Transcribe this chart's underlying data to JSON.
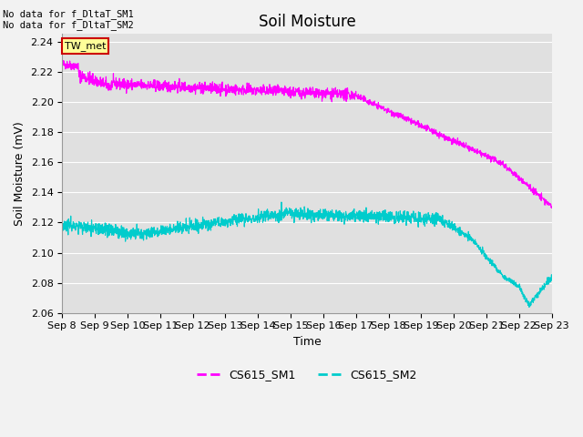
{
  "title": "Soil Moisture",
  "ylabel": "Soil Moisture (mV)",
  "xlabel": "Time",
  "ylim": [
    2.06,
    2.245
  ],
  "yticks": [
    2.06,
    2.08,
    2.1,
    2.12,
    2.14,
    2.16,
    2.18,
    2.2,
    2.22,
    2.24
  ],
  "xtick_labels": [
    "Sep 8",
    "Sep 9",
    "Sep 10",
    "Sep 11",
    "Sep 12",
    "Sep 13",
    "Sep 14",
    "Sep 15",
    "Sep 16",
    "Sep 17",
    "Sep 18",
    "Sep 19",
    "Sep 20",
    "Sep 21",
    "Sep 22",
    "Sep 23"
  ],
  "num_days": 15,
  "color_sm1": "#FF00FF",
  "color_sm2": "#00CCCC",
  "legend_label_sm1": "CS615_SM1",
  "legend_label_sm2": "CS615_SM2",
  "annotation_text": "No data for f_DltaT_SM1\nNo data for f_DltaT_SM2",
  "tw_met_label": "TW_met",
  "tw_met_color_bg": "#FFFF99",
  "tw_met_color_border": "#CC0000",
  "bg_color": "#E0E0E0",
  "grid_color": "#FFFFFF",
  "fig_bg_color": "#F2F2F2",
  "title_fontsize": 12,
  "label_fontsize": 9,
  "tick_fontsize": 8
}
